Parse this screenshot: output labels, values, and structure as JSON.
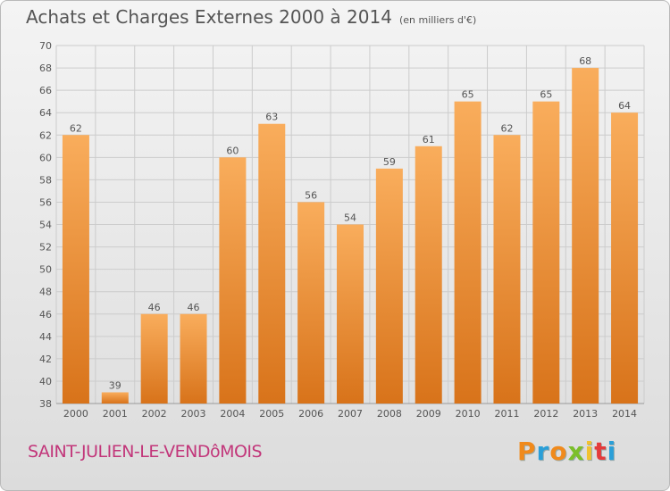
{
  "title": "Achats et Charges Externes 2000 à 2014",
  "unit": "(en milliers d'€)",
  "commune": "SAINT-JULIEN-LE-VENDôMOIS",
  "logo": {
    "text": "Proxiti",
    "colors": [
      "#f08a1c",
      "#2a9fd8",
      "#f08a1c",
      "#7bbf2a",
      "#f2c230",
      "#e43b3b",
      "#2a9fd8"
    ]
  },
  "colors": {
    "bar_light": "#f9ad5c",
    "bar_dark": "#d8731a",
    "grid": "#cccccc",
    "text": "#555555"
  },
  "chart_data": {
    "type": "bar",
    "categories": [
      "2000",
      "2001",
      "2002",
      "2003",
      "2004",
      "2005",
      "2006",
      "2007",
      "2008",
      "2009",
      "2010",
      "2011",
      "2012",
      "2013",
      "2014"
    ],
    "values": [
      62,
      39,
      46,
      46,
      60,
      63,
      56,
      54,
      59,
      61,
      65,
      62,
      65,
      68,
      64
    ],
    "ylim": [
      38,
      70
    ],
    "yticks": [
      38,
      40,
      42,
      44,
      46,
      48,
      50,
      52,
      54,
      56,
      58,
      60,
      62,
      64,
      66,
      68,
      70
    ],
    "grid": true
  }
}
